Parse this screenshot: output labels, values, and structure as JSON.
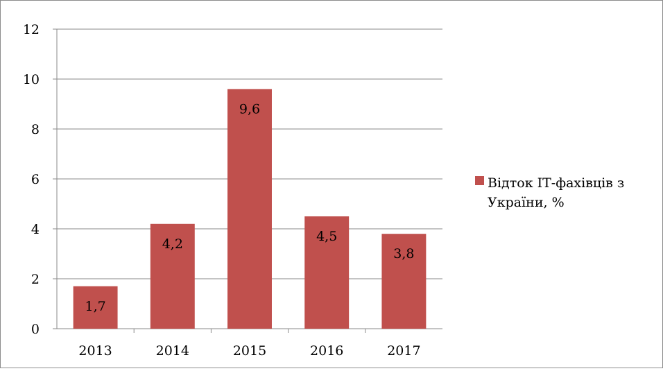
{
  "chart_data": {
    "type": "bar",
    "categories": [
      "2013",
      "2014",
      "2015",
      "2016",
      "2017"
    ],
    "series": [
      {
        "name": "Відток ІТ-фахівців з України, %",
        "values": [
          1.7,
          4.2,
          9.6,
          4.5,
          3.8
        ],
        "data_labels": [
          "1,7",
          "4,2",
          "9,6",
          "4,5",
          "3,8"
        ],
        "color": "#c0504d"
      }
    ],
    "y_ticks": [
      "0",
      "2",
      "4",
      "6",
      "8",
      "10",
      "12"
    ],
    "ylim": [
      0,
      12
    ],
    "grid": true,
    "legend_position": "right",
    "title": "",
    "xlabel": "",
    "ylabel": ""
  }
}
